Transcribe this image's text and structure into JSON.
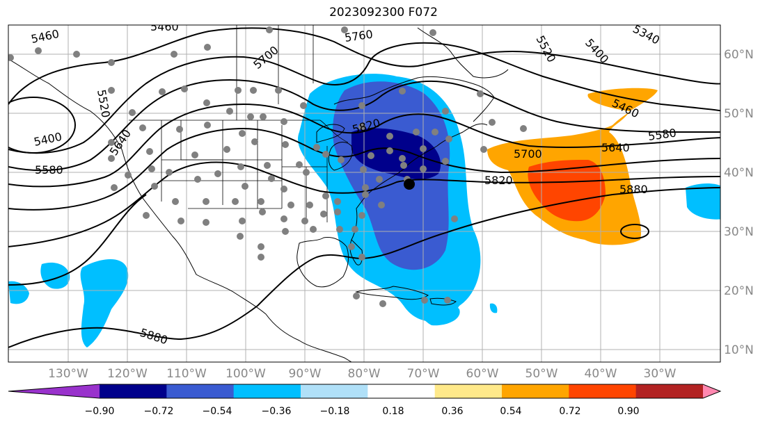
{
  "title": "2023092300 F072",
  "longitude_labels": [
    "130°W",
    "120°W",
    "110°W",
    "100°W",
    "90°W",
    "80°W",
    "70°W",
    "60°W",
    "50°W",
    "40°W",
    "30°W"
  ],
  "latitude_labels": [
    "60°N",
    "50°N",
    "40°N",
    "30°N",
    "20°N",
    "10°N"
  ],
  "contour_labels": [
    "5460",
    "5460",
    "5460",
    "5520",
    "5520",
    "5400",
    "5400",
    "5580",
    "5580",
    "5640",
    "5640",
    "5700",
    "5700",
    "5760",
    "5820",
    "5820",
    "5880",
    "5880",
    "5340"
  ],
  "colorbar": {
    "ticks": [
      "−0.90",
      "−0.72",
      "−0.54",
      "−0.36",
      "−0.18",
      "0.18",
      "0.36",
      "0.54",
      "0.72",
      "0.90"
    ],
    "colors": [
      "#9932cc",
      "#00008b",
      "#3a5bd1",
      "#00bfff",
      "#b0e0f8",
      "#ffffff",
      "#ffe98a",
      "#ffa500",
      "#ff4500",
      "#b22222",
      "#ff88b0"
    ]
  },
  "colors": {
    "land_line": "#000000",
    "grid": "#b0b0b0",
    "station_dot": "#808080"
  }
}
